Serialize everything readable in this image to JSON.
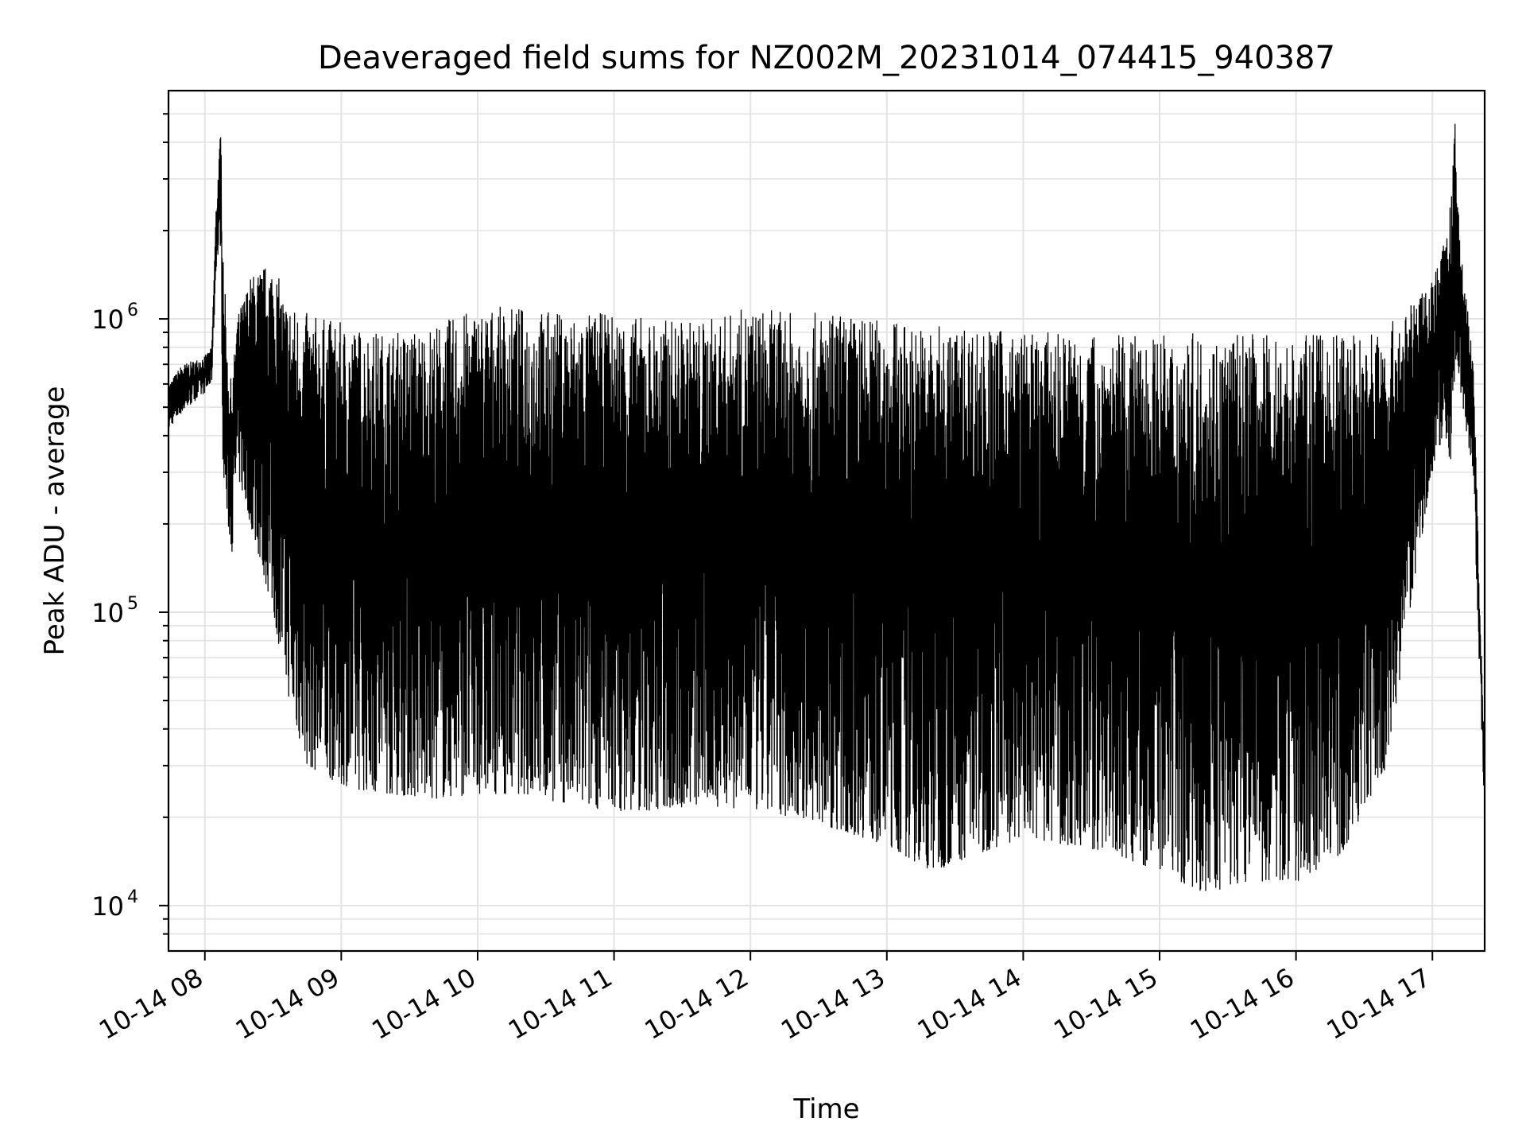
{
  "chart_data": {
    "type": "line",
    "title": "Deaveraged field sums for NZ002M_20231014_074415_940387",
    "xlabel": "Time",
    "ylabel": "Peak ADU - average",
    "yscale": "log",
    "ylim": [
      7000,
      6000000
    ],
    "xlim": [
      "2023-10-14 07:44",
      "2023-10-14 17:23"
    ],
    "grid": true,
    "x_ticks": [
      "10-14 08",
      "10-14 09",
      "10-14 10",
      "10-14 11",
      "10-14 12",
      "10-14 13",
      "10-14 14",
      "10-14 15",
      "10-14 16",
      "10-14 17"
    ],
    "y_ticks": [
      {
        "value": 10000,
        "base": "10",
        "exp": "4"
      },
      {
        "value": 100000,
        "base": "10",
        "exp": "5"
      },
      {
        "value": 1000000,
        "base": "10",
        "exp": "6"
      }
    ],
    "series_color": "#000000",
    "series": [
      {
        "x": [
          "07:44",
          "07:50",
          "07:55",
          "08:00",
          "08:03",
          "08:05",
          "08:07",
          "08:08",
          "08:10",
          "08:12",
          "08:14",
          "08:20",
          "08:30",
          "08:35",
          "08:40",
          "08:45",
          "08:55",
          "09:05",
          "09:20",
          "09:40",
          "10:00",
          "10:20",
          "10:40",
          "11:00",
          "11:20",
          "11:40",
          "12:00",
          "12:20",
          "12:40",
          "13:00",
          "13:20",
          "13:40",
          "14:00",
          "14:20",
          "14:40",
          "15:00",
          "15:20",
          "15:40",
          "16:00",
          "16:20",
          "16:40",
          "16:50",
          "17:00",
          "17:05",
          "17:08",
          "17:10",
          "17:12",
          "17:15",
          "17:18",
          "17:20",
          "17:23"
        ],
        "upper": [
          600000,
          700000,
          720000,
          750000,
          800000,
          2500000,
          4500000,
          2000000,
          700000,
          600000,
          1000000,
          1400000,
          1600000,
          1200000,
          1100000,
          1050000,
          1000000,
          950000,
          900000,
          950000,
          1100000,
          1100000,
          1050000,
          1050000,
          1000000,
          1000000,
          1100000,
          1050000,
          1050000,
          1000000,
          950000,
          950000,
          900000,
          900000,
          880000,
          880000,
          900000,
          900000,
          880000,
          900000,
          950000,
          1100000,
          1400000,
          1800000,
          2500000,
          4700000,
          2000000,
          1200000,
          700000,
          200000,
          30000
        ],
        "lower": [
          420000,
          480000,
          520000,
          560000,
          600000,
          1500000,
          1800000,
          300000,
          200000,
          160000,
          300000,
          200000,
          100000,
          60000,
          40000,
          30000,
          27000,
          25000,
          24000,
          23000,
          24000,
          24000,
          22000,
          21000,
          21000,
          22000,
          21000,
          20000,
          18000,
          16000,
          13000,
          15000,
          17000,
          16000,
          15000,
          13000,
          11000,
          12000,
          12000,
          15000,
          30000,
          100000,
          300000,
          400000,
          320000,
          700000,
          600000,
          400000,
          300000,
          90000,
          20000
        ]
      }
    ]
  }
}
